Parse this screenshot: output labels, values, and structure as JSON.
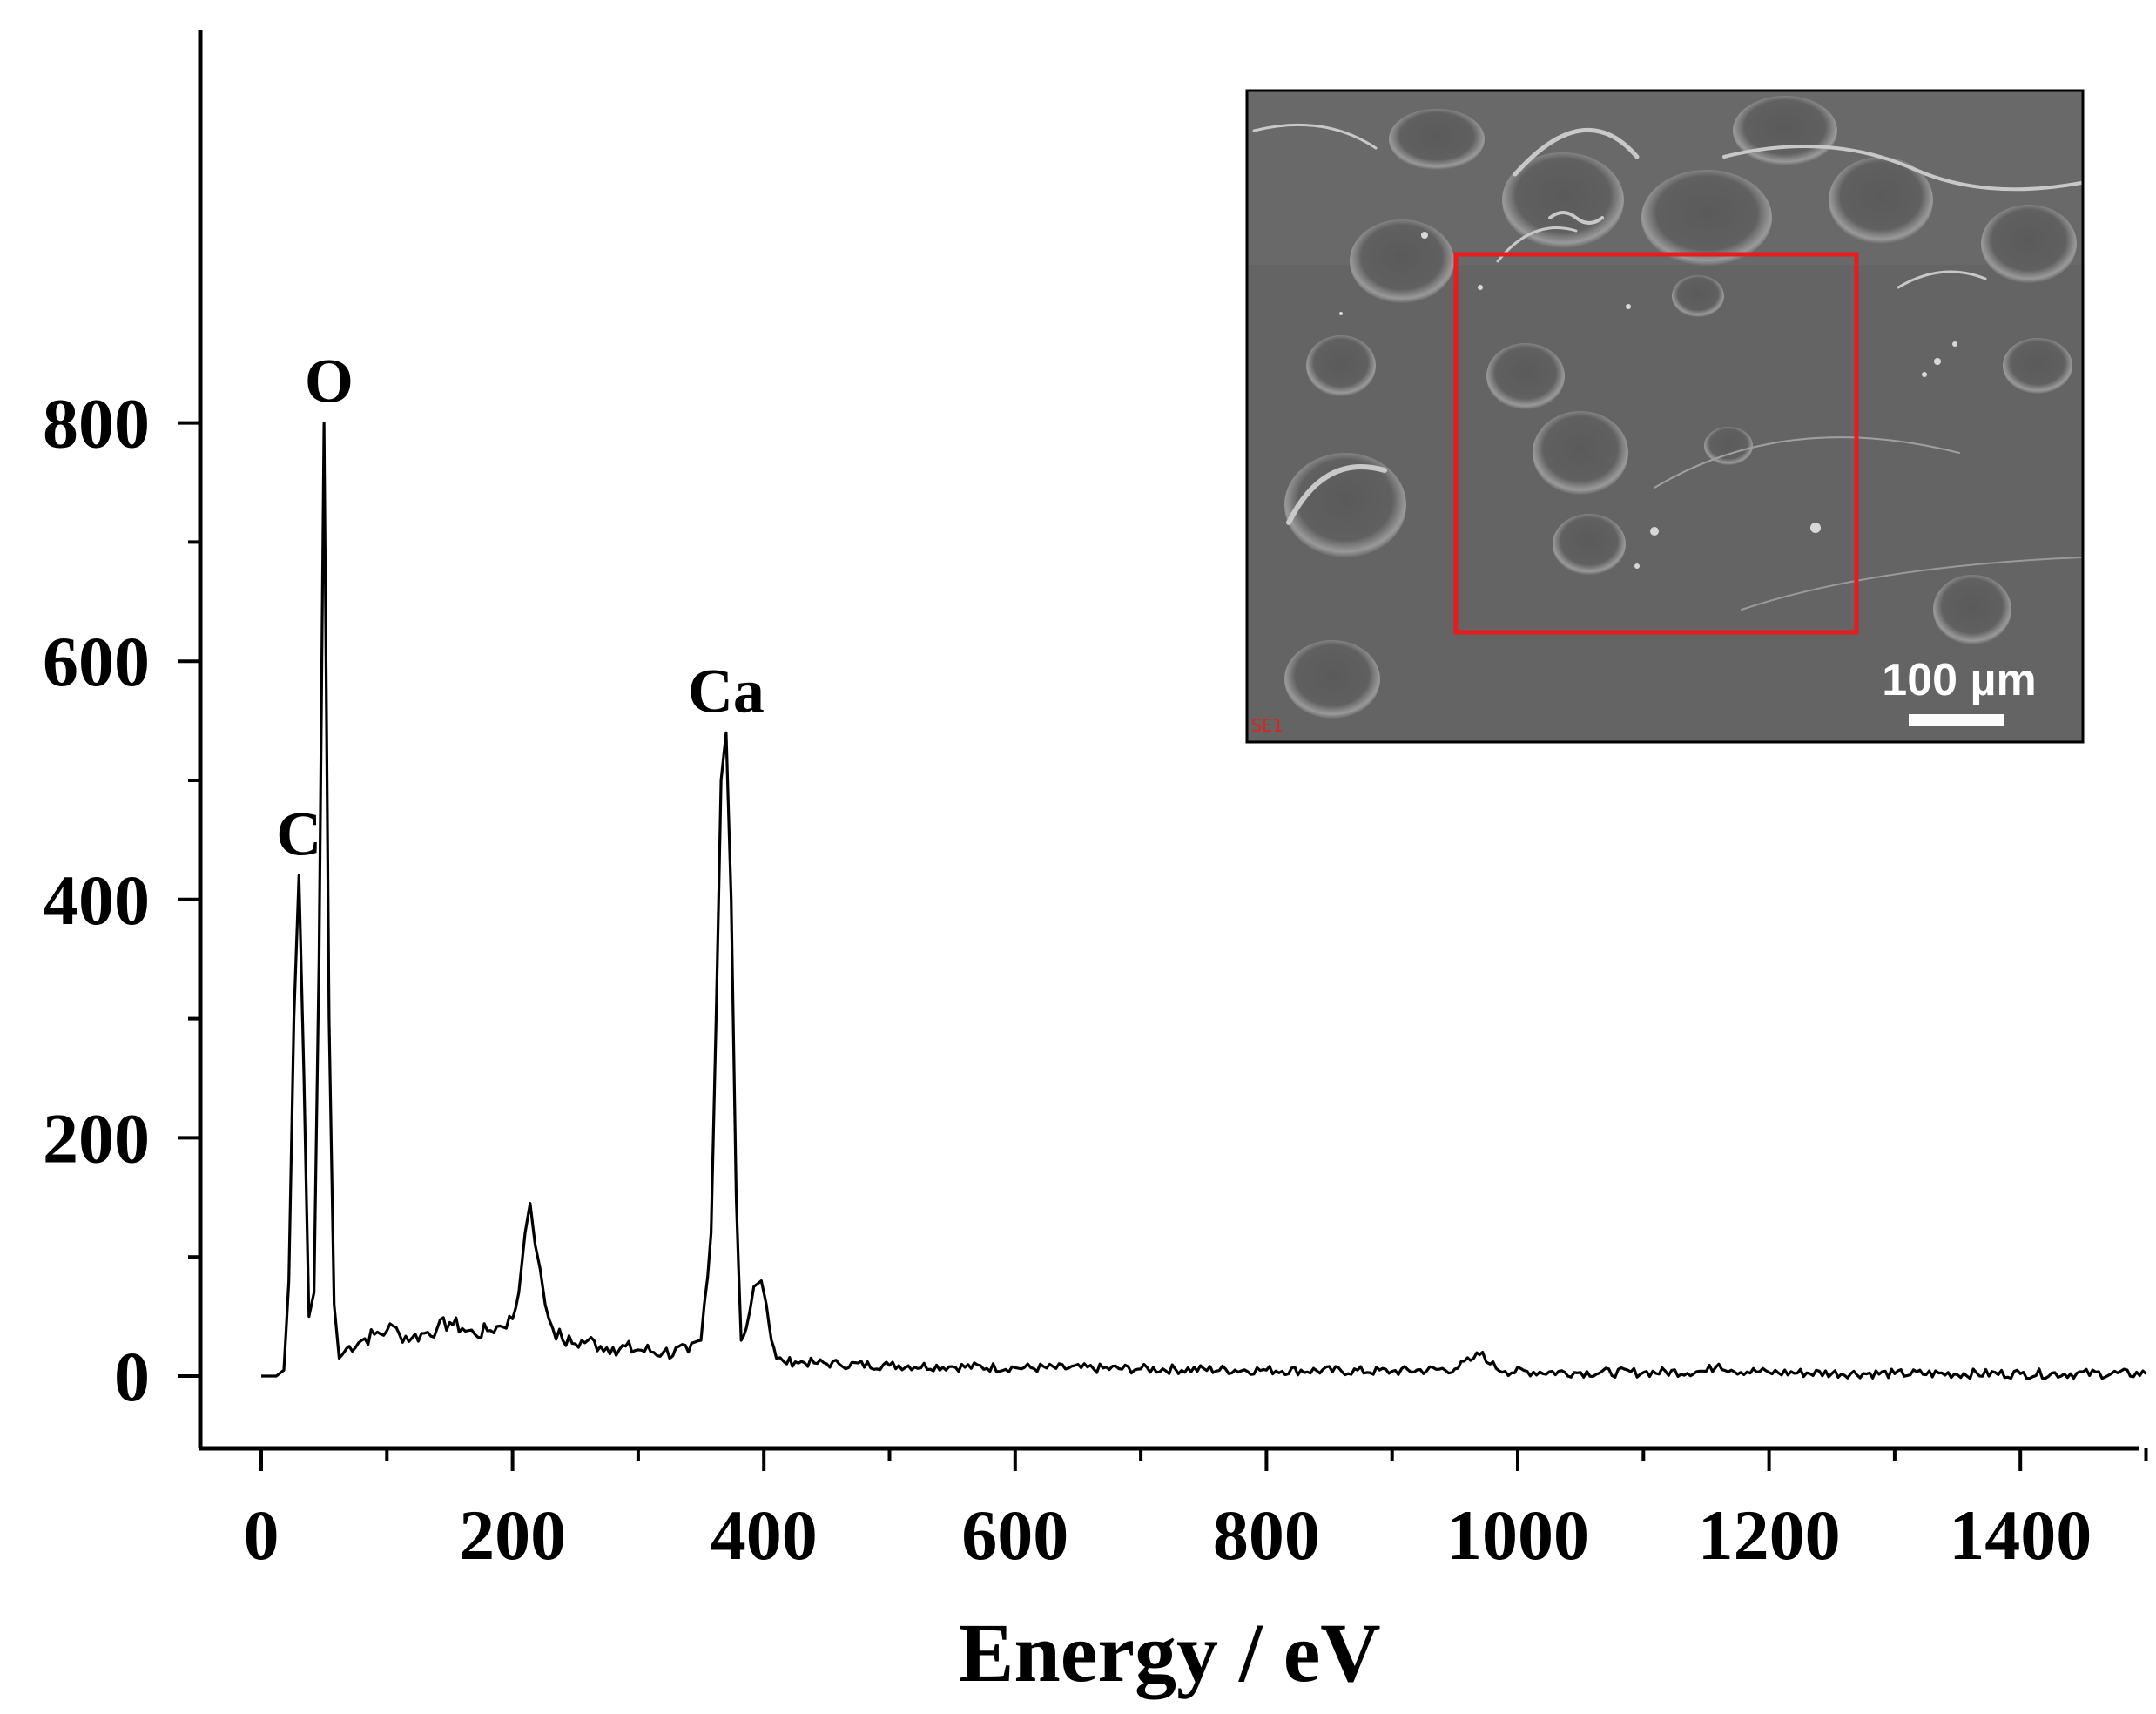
{
  "chart_data": {
    "type": "line",
    "title": "",
    "xlabel": "Energy / eV",
    "ylabel": "",
    "xlim": [
      -50,
      1500
    ],
    "ylim": [
      -50,
      900
    ],
    "x_ticks": [
      0,
      200,
      400,
      600,
      800,
      1000,
      1200,
      1400
    ],
    "y_ticks": [
      0,
      200,
      400,
      600,
      800
    ],
    "grid": false,
    "legend": "none",
    "line_color": "#000000",
    "series": [
      {
        "x": [
          0,
          12,
          18,
          22,
          26,
          30,
          34,
          38,
          42,
          46,
          50,
          54,
          58,
          62,
          66,
          70,
          80,
          90,
          100,
          105,
          110,
          120,
          130,
          140,
          150,
          160,
          170,
          180,
          190,
          200,
          205,
          210,
          214,
          218,
          222,
          226,
          232,
          240,
          250,
          260,
          270,
          280,
          300,
          320,
          340,
          350,
          358,
          362,
          366,
          370,
          374,
          378,
          382,
          386,
          392,
          398,
          402,
          406,
          410,
          416,
          425,
          440,
          460,
          500,
          550,
          600,
          700,
          800,
          900,
          950,
          965,
          972,
          978,
          990,
          1050,
          1100,
          1150,
          1160,
          1170,
          1200,
          1300,
          1400,
          1500
        ],
        "y": [
          0,
          0,
          5,
          80,
          300,
          420,
          250,
          50,
          70,
          350,
          800,
          300,
          60,
          15,
          20,
          25,
          30,
          35,
          38,
          42,
          35,
          32,
          36,
          40,
          45,
          40,
          35,
          38,
          42,
          48,
          70,
          120,
          145,
          110,
          90,
          60,
          40,
          30,
          27,
          30,
          25,
          24,
          22,
          20,
          20,
          30,
          120,
          300,
          500,
          540,
          400,
          150,
          30,
          40,
          75,
          80,
          60,
          30,
          15,
          12,
          12,
          11,
          10,
          9,
          8,
          7,
          6,
          5,
          4,
          6,
          15,
          20,
          10,
          4,
          3,
          3,
          4,
          10,
          5,
          3,
          2,
          2,
          2
        ]
      }
    ],
    "annotations": [
      {
        "text": "C",
        "x": 30,
        "y": 420
      },
      {
        "text": "O",
        "x": 54,
        "y": 800
      },
      {
        "text": "Ca",
        "x": 370,
        "y": 540
      }
    ],
    "inset": {
      "scale_bar_label": "100 µm",
      "detector_tag": "SE1",
      "highlight_color": "#e81c1c",
      "scale_bar_color": "#ffffff"
    }
  }
}
